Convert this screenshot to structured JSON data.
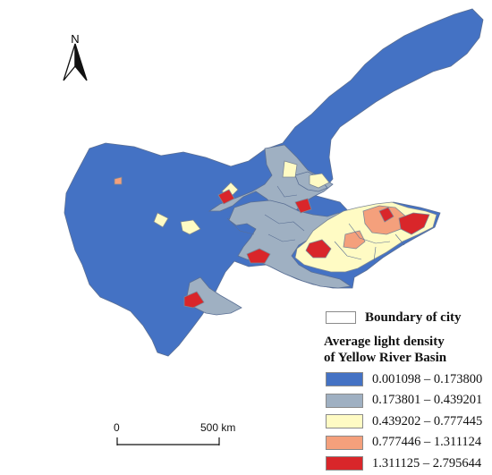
{
  "north_label": "N",
  "legend": {
    "boundary_label": "Boundary of city",
    "title_line1": "Average light density",
    "title_line2": "of Yellow River Basin",
    "classes": [
      {
        "range": "0.001098 – 0.173800",
        "color": "#4472c4"
      },
      {
        "range": "0.173801 – 0.439201",
        "color": "#9fb0c2"
      },
      {
        "range": "0.439202 – 0.777445",
        "color": "#fffbc4"
      },
      {
        "range": "0.777446 – 1.311124",
        "color": "#f4a07c"
      },
      {
        "range": "1.311125 – 2.795644",
        "color": "#d9262a"
      }
    ]
  },
  "scale_bar": {
    "start": "0",
    "end": "500 km"
  },
  "colors": {
    "boundary": "#5a6f94",
    "outline": "#7b8796"
  }
}
